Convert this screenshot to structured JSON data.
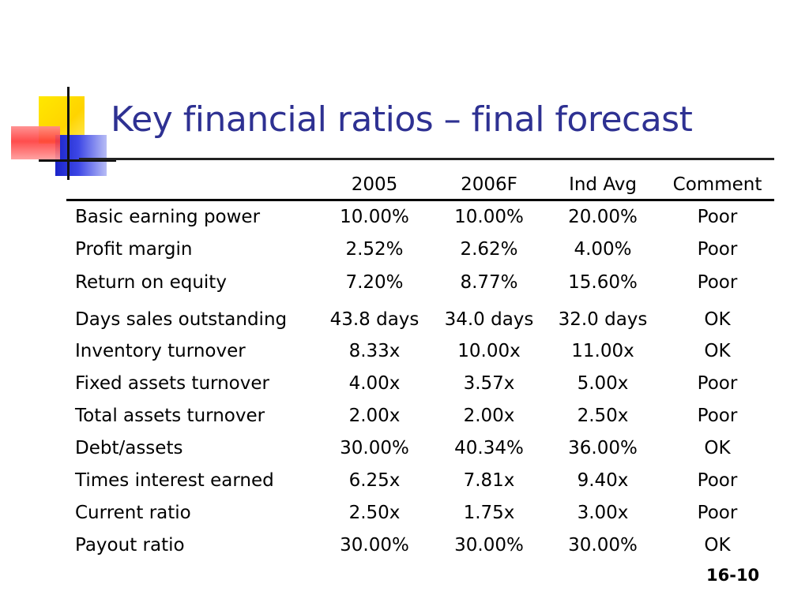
{
  "title": "Key financial ratios – final forecast",
  "columns": [
    "2005",
    "2006F",
    "Ind Avg",
    "Comment"
  ],
  "rows": [
    {
      "label": "Basic earning power",
      "values": [
        "10.00%",
        "10.00%",
        "20.00%",
        "Poor"
      ]
    },
    {
      "label": "Profit margin",
      "values": [
        "2.52%",
        "2.62%",
        "4.00%",
        "Poor"
      ]
    },
    {
      "label": "Return on equity",
      "values": [
        "7.20%",
        "8.77%",
        "15.60%",
        "Poor"
      ]
    },
    {
      "label": "Days sales outstanding",
      "values": [
        "43.8 days",
        "34.0 days",
        "32.0 days",
        "OK"
      ]
    },
    {
      "label": "Inventory turnover",
      "values": [
        "8.33x",
        "10.00x",
        "11.00x",
        "OK"
      ]
    },
    {
      "label": "Fixed assets turnover",
      "values": [
        "4.00x",
        "3.57x",
        "5.00x",
        "Poor"
      ]
    },
    {
      "label": "Total assets turnover",
      "values": [
        "2.00x",
        "2.00x",
        "2.50x",
        "Poor"
      ]
    },
    {
      "label": "Debt/assets",
      "values": [
        "30.00%",
        "40.34%",
        "36.00%",
        "OK"
      ]
    },
    {
      "label": "Times interest earned",
      "values": [
        "6.25x",
        "7.81x",
        "9.40x",
        "Poor"
      ]
    },
    {
      "label": "Current ratio",
      "values": [
        "2.50x",
        "1.75x",
        "3.00x",
        "Poor"
      ]
    },
    {
      "label": "Payout ratio",
      "values": [
        "30.00%",
        "30.00%",
        "30.00%",
        "OK"
      ]
    }
  ],
  "slide_number": "16-10",
  "colors": {
    "title": "#2e3192",
    "logo_yellow": "#ffd400",
    "logo_blue": "#1a24c9",
    "logo_red": "#ff3d3d"
  },
  "icons": [
    "logo-squares-icon"
  ]
}
